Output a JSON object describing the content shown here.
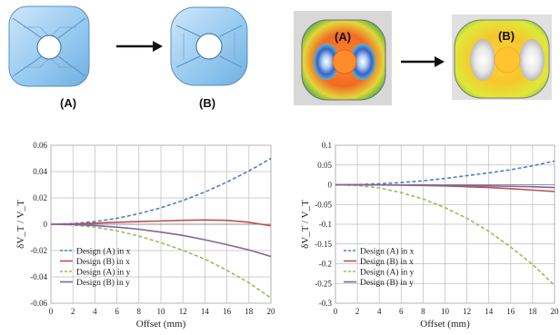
{
  "designs": {
    "left_label_a": "(A)",
    "left_label_b": "(B)",
    "right_label_a": "(A)",
    "right_label_b": "(B)"
  },
  "colors": {
    "design_a_x": "#4a7fc8",
    "design_b_x": "#c0504d",
    "design_a_y": "#9bbb59",
    "design_b_y": "#8064a2"
  },
  "chart_data": [
    {
      "type": "line",
      "xlabel": "Offset (mm)",
      "ylabel": "δV_T / V_T",
      "xlim": [
        0,
        20
      ],
      "ylim": [
        -0.06,
        0.06
      ],
      "xticks": [
        0,
        2,
        4,
        6,
        8,
        10,
        12,
        14,
        16,
        18,
        20
      ],
      "yticks": [
        -0.06,
        -0.04,
        -0.02,
        0,
        0.02,
        0.04,
        0.06
      ],
      "ytick_labels": [
        "-0.06",
        "-0.04",
        "-0.02",
        "0",
        "0.02",
        "0.04",
        "0.06"
      ],
      "grid": true,
      "legend_position": "bottom-left",
      "x": [
        0,
        2,
        4,
        6,
        8,
        10,
        12,
        14,
        16,
        18,
        20
      ],
      "series": [
        {
          "name": "Design (A) in x",
          "style": "dashed",
          "values": [
            0,
            0.0005,
            0.002,
            0.0045,
            0.008,
            0.0125,
            0.018,
            0.0245,
            0.032,
            0.0405,
            0.05
          ]
        },
        {
          "name": "Design (B) in x",
          "style": "solid",
          "values": [
            0,
            0.0002,
            0.0008,
            0.0015,
            0.002,
            0.0025,
            0.003,
            0.0032,
            0.003,
            0.0015,
            -0.0012
          ]
        },
        {
          "name": "Design (A) in y",
          "style": "dashed",
          "values": [
            0,
            -0.0006,
            -0.0022,
            -0.005,
            -0.009,
            -0.014,
            -0.0198,
            -0.0265,
            -0.035,
            -0.0445,
            -0.056
          ]
        },
        {
          "name": "Design (B) in y",
          "style": "solid",
          "values": [
            0,
            -0.0002,
            -0.001,
            -0.0022,
            -0.0038,
            -0.006,
            -0.0085,
            -0.0118,
            -0.0155,
            -0.0195,
            -0.0245
          ]
        }
      ]
    },
    {
      "type": "line",
      "xlabel": "Offset (mm)",
      "ylabel": "δV_T / V_T",
      "xlim": [
        0,
        20
      ],
      "ylim": [
        -0.3,
        0.1
      ],
      "xticks": [
        0,
        2,
        4,
        6,
        8,
        10,
        12,
        14,
        16,
        18,
        20
      ],
      "yticks": [
        -0.3,
        -0.25,
        -0.2,
        -0.15,
        -0.1,
        -0.05,
        0,
        0.05,
        0.1
      ],
      "ytick_labels": [
        "-0.3",
        "-0.25",
        "-0.2",
        "-0.15",
        "-0.1",
        "-0.05",
        "0",
        "0.05",
        "0.1"
      ],
      "grid": true,
      "legend_position": "bottom-left",
      "x": [
        0,
        2,
        4,
        6,
        8,
        10,
        12,
        14,
        16,
        18,
        20
      ],
      "series": [
        {
          "name": "Design (A) in x",
          "style": "dashed",
          "values": [
            0,
            0.0006,
            0.0025,
            0.0055,
            0.01,
            0.016,
            0.023,
            0.03,
            0.038,
            0.048,
            0.06
          ]
        },
        {
          "name": "Design (B) in x",
          "style": "solid",
          "values": [
            0,
            -0.0001,
            -0.0005,
            -0.001,
            -0.002,
            -0.003,
            -0.005,
            -0.007,
            -0.01,
            -0.0135,
            -0.017
          ]
        },
        {
          "name": "Design (A) in y",
          "style": "dashed",
          "values": [
            0,
            -0.002,
            -0.008,
            -0.02,
            -0.036,
            -0.058,
            -0.085,
            -0.118,
            -0.158,
            -0.202,
            -0.255
          ]
        },
        {
          "name": "Design (B) in y",
          "style": "solid",
          "values": [
            0,
            -0.0001,
            -0.0003,
            -0.0006,
            -0.001,
            -0.0015,
            -0.002,
            -0.003,
            -0.004,
            -0.005,
            -0.007
          ]
        }
      ]
    }
  ]
}
